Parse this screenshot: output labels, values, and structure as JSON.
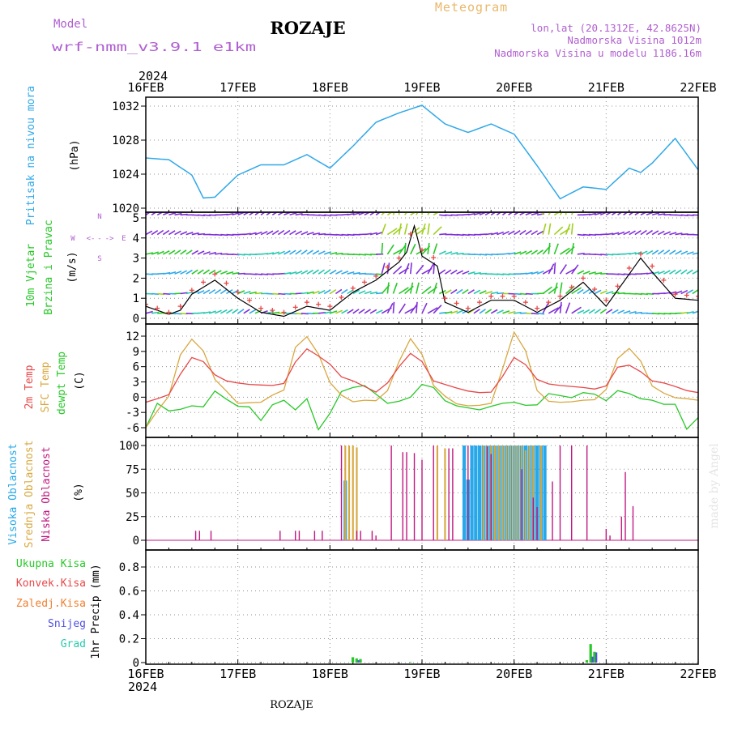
{
  "header": {
    "model_label": "Model",
    "model_name": "wrf-nmm_v3.9.1 e1km",
    "station": "ROZAJE",
    "product": "Meteogram",
    "lonlat": "lon,lat (20.1312E, 42.8625N)",
    "elevation": "Nadmorska Visina 1012m",
    "model_elevation": "Nadmorska Visina u modelu 1186.16m",
    "footer_station": "ROZAJE",
    "watermark": "made by Angel"
  },
  "colors": {
    "purple": "#b05fd0",
    "gold": "#e8b86a",
    "pressure": "#30a8e8",
    "temp2m": "#e84848",
    "sfc": "#d8a840",
    "dew": "#28c828",
    "cloud_high": "#28a8e8",
    "cloud_mid": "#d8a840",
    "cloud_low": "#c01880",
    "precip_total": "#28c828",
    "precip_conv": "#e84848",
    "precip_frz": "#f08030",
    "precip_snow": "#5050e0",
    "precip_grad": "#28c8b0",
    "wind_line": "#000000",
    "wind_gust": "#e84848"
  },
  "chart_data": [
    {
      "panel": "pressure",
      "type": "line",
      "ylabel": "Pritisak na nivou mora",
      "units": "(hPa)",
      "ylim": [
        1020,
        1033
      ],
      "yticks": [
        1020,
        1024,
        1028,
        1032
      ],
      "x_hours": [
        0,
        6,
        12,
        15,
        18,
        24,
        30,
        36,
        42,
        48,
        54,
        60,
        66,
        72,
        78,
        84,
        90,
        96,
        102,
        108,
        114,
        120,
        126,
        129,
        132,
        138,
        144
      ],
      "values": [
        1025.9,
        1025.7,
        1023.9,
        1021.2,
        1021.3,
        1023.9,
        1025.1,
        1025.1,
        1026.3,
        1024.7,
        1027.3,
        1030.1,
        1031.2,
        1032.1,
        1029.9,
        1028.9,
        1029.9,
        1028.7,
        1025.0,
        1021.1,
        1022.5,
        1022.2,
        1024.7,
        1024.2,
        1025.3,
        1028.2,
        1024.5
      ]
    },
    {
      "panel": "wind",
      "type": "line",
      "ylabel_1": "10m Vjetar",
      "ylabel_2": "Brzina i Pravac",
      "units": "(m/s)",
      "compass": [
        "N",
        "<-",
        "-",
        "->",
        "E",
        "W",
        "S"
      ],
      "ylim": [
        -0.3,
        5.5
      ],
      "yticks": [
        0,
        1,
        2,
        3,
        4,
        5
      ],
      "x_hours": [
        0,
        6,
        9,
        12,
        18,
        24,
        30,
        36,
        42,
        48,
        54,
        60,
        66,
        68,
        70,
        72,
        76,
        78,
        84,
        90,
        96,
        102,
        108,
        114,
        120,
        123,
        126,
        129,
        132,
        138,
        144
      ],
      "speed": [
        0.6,
        0.2,
        0.4,
        1.2,
        1.9,
        1.0,
        0.3,
        0.1,
        0.6,
        0.4,
        1.3,
        1.9,
        2.8,
        3.3,
        4.6,
        3.1,
        2.6,
        0.8,
        0.3,
        0.9,
        0.9,
        0.3,
        0.9,
        1.8,
        0.6,
        1.4,
        2.2,
        3.0,
        2.3,
        1.0,
        0.9
      ],
      "gust": [
        0.7,
        0.3,
        0.6,
        1.4,
        2.2,
        1.3,
        0.5,
        0.3,
        0.8,
        0.6,
        1.5,
        2.1,
        3.0,
        3.6,
        4.8,
        3.4,
        2.9,
        1.0,
        0.5,
        1.1,
        1.1,
        0.5,
        1.1,
        2.0,
        0.9,
        1.6,
        2.5,
        3.2,
        2.6,
        1.2,
        1.1
      ]
    },
    {
      "panel": "temperature",
      "type": "line",
      "ylabel_1": "2m Temp",
      "ylabel_2": "SFC Temp",
      "ylabel_3": "dewpt Temp",
      "units": "(C)",
      "ylim": [
        -7,
        14
      ],
      "yticks": [
        -6,
        -3,
        0,
        3,
        6,
        9,
        12
      ],
      "x_hours": [
        0,
        3,
        6,
        9,
        12,
        15,
        18,
        21,
        24,
        27,
        30,
        33,
        36,
        39,
        42,
        45,
        48,
        51,
        54,
        57,
        60,
        63,
        66,
        69,
        72,
        75,
        78,
        81,
        84,
        87,
        90,
        93,
        96,
        99,
        102,
        105,
        108,
        111,
        114,
        117,
        120,
        123,
        126,
        129,
        132,
        135,
        138,
        141,
        144
      ],
      "t2m": [
        -1.0,
        -0.3,
        0.5,
        4.5,
        7.8,
        7.0,
        4.4,
        3.2,
        2.8,
        2.5,
        2.4,
        2.3,
        2.7,
        6.9,
        9.5,
        8.1,
        6.5,
        4.0,
        3.2,
        2.1,
        1.0,
        2.8,
        6.0,
        8.6,
        7.0,
        3.2,
        2.5,
        1.8,
        1.2,
        0.9,
        1.0,
        4.1,
        7.8,
        6.4,
        3.5,
        2.6,
        2.3,
        2.1,
        1.9,
        1.6,
        2.2,
        5.9,
        6.3,
        5.0,
        3.2,
        2.8,
        2.1,
        1.3,
        0.9
      ],
      "sfc": [
        -6.0,
        -2.7,
        0.2,
        8.3,
        11.4,
        9.1,
        3.5,
        1.2,
        -1.2,
        -1.1,
        -1.0,
        0.4,
        1.4,
        9.8,
        11.9,
        8.5,
        2.9,
        0.4,
        -0.9,
        -0.6,
        -0.7,
        1.3,
        7.0,
        11.5,
        8.4,
        2.3,
        0.2,
        -1.3,
        -1.7,
        -1.6,
        -1.2,
        5.6,
        12.8,
        9.1,
        1.3,
        -0.8,
        -1.0,
        -0.9,
        -0.6,
        -0.5,
        1.5,
        7.6,
        9.6,
        7.1,
        2.2,
        0.8,
        -0.1,
        -0.3,
        -0.6
      ],
      "dewpt": [
        -6.0,
        -1.2,
        -2.7,
        -2.4,
        -1.7,
        -1.9,
        1.2,
        -0.4,
        -1.8,
        -1.9,
        -4.6,
        -1.5,
        -0.6,
        -2.5,
        -0.3,
        -6.4,
        -3.2,
        1.1,
        1.9,
        2.3,
        0.6,
        -1.2,
        -0.8,
        0.0,
        2.5,
        1.9,
        -0.7,
        -1.7,
        -2.1,
        -2.5,
        -1.8,
        -1.2,
        -1.0,
        -1.6,
        -1.5,
        0.7,
        0.3,
        -0.1,
        0.9,
        0.6,
        -0.7,
        1.3,
        0.7,
        -0.3,
        -0.6,
        -1.4,
        -1.4,
        -6.3,
        -4.0
      ]
    },
    {
      "panel": "clouds",
      "type": "bar",
      "ylabel_1": "Visoka Oblacnost",
      "ylabel_2": "Srednja Oblacnost",
      "ylabel_3": "Niska Oblacnost",
      "units": "(%)",
      "ylim": [
        0,
        100
      ],
      "yticks": [
        0,
        25,
        50,
        75,
        100
      ],
      "low": [
        [
          13,
          10
        ],
        [
          14,
          10
        ],
        [
          17,
          10
        ],
        [
          35,
          10
        ],
        [
          39,
          10
        ],
        [
          40,
          10
        ],
        [
          44,
          10
        ],
        [
          46,
          10
        ],
        [
          51,
          100
        ],
        [
          55,
          10
        ],
        [
          56,
          10
        ],
        [
          59,
          10
        ],
        [
          60,
          5
        ],
        [
          64,
          100
        ],
        [
          67,
          93
        ],
        [
          68,
          93
        ],
        [
          70,
          92
        ],
        [
          72,
          85
        ],
        [
          75,
          100
        ],
        [
          79,
          97
        ],
        [
          80,
          97
        ],
        [
          84,
          100
        ],
        [
          89,
          99
        ],
        [
          90,
          91
        ],
        [
          98,
          75
        ],
        [
          101,
          45
        ],
        [
          102,
          35
        ],
        [
          106,
          62
        ],
        [
          108,
          100
        ],
        [
          111,
          100
        ],
        [
          115,
          100
        ],
        [
          120,
          12
        ],
        [
          121,
          5
        ],
        [
          124,
          25
        ],
        [
          125,
          72
        ],
        [
          127,
          36
        ]
      ],
      "mid": [
        [
          52,
          100
        ],
        [
          53,
          100
        ],
        [
          54,
          100
        ],
        [
          55,
          98
        ],
        [
          76,
          100
        ],
        [
          78,
          97
        ],
        [
          88,
          100
        ],
        [
          89,
          100
        ],
        [
          90,
          100
        ],
        [
          91,
          100
        ],
        [
          92,
          100
        ],
        [
          93,
          100
        ],
        [
          94,
          100
        ],
        [
          95,
          100
        ],
        [
          96,
          100
        ],
        [
          97,
          100
        ],
        [
          98,
          100
        ],
        [
          99,
          95
        ],
        [
          100,
          100
        ],
        [
          101,
          100
        ],
        [
          103,
          100
        ]
      ],
      "high": [
        [
          52,
          63
        ],
        [
          83,
          100
        ],
        [
          84,
          64
        ],
        [
          85,
          100
        ],
        [
          86,
          100
        ],
        [
          87,
          100
        ],
        [
          88,
          100
        ],
        [
          89,
          100
        ],
        [
          90,
          100
        ],
        [
          91,
          100
        ],
        [
          92,
          100
        ],
        [
          93,
          100
        ],
        [
          94,
          100
        ],
        [
          95,
          100
        ],
        [
          96,
          100
        ],
        [
          97,
          100
        ],
        [
          98,
          100
        ],
        [
          99,
          100
        ],
        [
          100,
          100
        ],
        [
          101,
          100
        ],
        [
          102,
          100
        ],
        [
          103,
          100
        ],
        [
          104,
          100
        ]
      ]
    },
    {
      "panel": "precip",
      "type": "bar",
      "ylabel": "1hr Precip (mm)",
      "legend": [
        "Ukupna Kisa",
        "Konvek.Kisa",
        "Zaledj.Kisa",
        "Snijeg",
        "Grad"
      ],
      "ylim": [
        0,
        1.0
      ],
      "yticks": [
        0,
        0.2,
        0.4,
        0.6,
        0.8
      ],
      "total": [
        [
          54,
          0.045
        ],
        [
          55,
          0.035
        ],
        [
          56,
          0.03
        ],
        [
          69,
          0.005
        ],
        [
          115,
          0.02
        ],
        [
          116,
          0.155
        ],
        [
          117,
          0.09
        ]
      ],
      "snow": [
        [
          55,
          0.02
        ],
        [
          116,
          0.05
        ],
        [
          117,
          0.085
        ]
      ]
    }
  ],
  "x_axis": {
    "year": "2024",
    "labels": [
      "16FEB",
      "17FEB",
      "18FEB",
      "19FEB",
      "20FEB",
      "21FEB",
      "22FEB"
    ]
  }
}
